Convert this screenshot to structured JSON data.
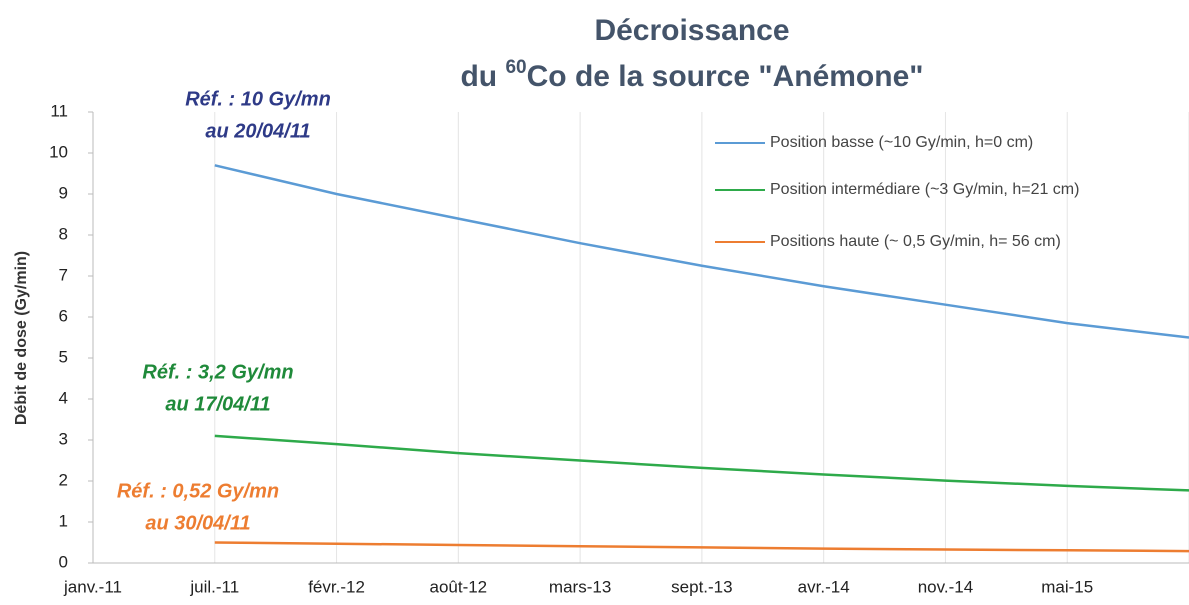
{
  "chart_data": {
    "type": "line",
    "title": {
      "line1": "Décroissance",
      "line2_start": "du ",
      "superscript": "60",
      "line2_end": "Co de la source \"Anémone\""
    },
    "ylabel": "Débit de dose (Gy/min)",
    "categories": [
      "janv.-11",
      "juil.-11",
      "févr.-12",
      "août-12",
      "mars-13",
      "sept.-13",
      "avr.-14",
      "nov.-14",
      "mai-15",
      null
    ],
    "series": [
      {
        "name": "Position basse (~10 Gy/min, h=0 cm)",
        "color": "#5b9bd5",
        "values": [
          null,
          9.7,
          9.0,
          8.4,
          7.8,
          7.25,
          6.75,
          6.3,
          5.85,
          5.5
        ]
      },
      {
        "name": "Position intermédiare (~3 Gy/min, h=21 cm)",
        "color": "#2eaa4a",
        "values": [
          null,
          3.1,
          2.9,
          2.68,
          2.5,
          2.32,
          2.16,
          2.01,
          1.88,
          1.77
        ]
      },
      {
        "name": "Positions haute (~ 0,5 Gy/min, h= 56 cm)",
        "color": "#ed7d31",
        "values": [
          null,
          0.5,
          0.47,
          0.44,
          0.41,
          0.38,
          0.35,
          0.33,
          0.31,
          0.29
        ]
      }
    ],
    "annotations": [
      {
        "lines": [
          "Réf. : 10 Gy/mn",
          "au 20/04/11"
        ],
        "color": "#2e3a87"
      },
      {
        "lines": [
          "Réf. : 3,2 Gy/mn",
          "au 17/04/11"
        ],
        "color": "#1f8a3a"
      },
      {
        "lines": [
          "Réf. : 0,52 Gy/mn",
          "au 30/04/11"
        ],
        "color": "#ed7d31"
      }
    ],
    "ylim": [
      0,
      11
    ],
    "yticks": [
      0,
      1,
      2,
      3,
      4,
      5,
      6,
      7,
      8,
      9,
      10,
      11
    ],
    "grid": true,
    "legend": "upper right"
  }
}
